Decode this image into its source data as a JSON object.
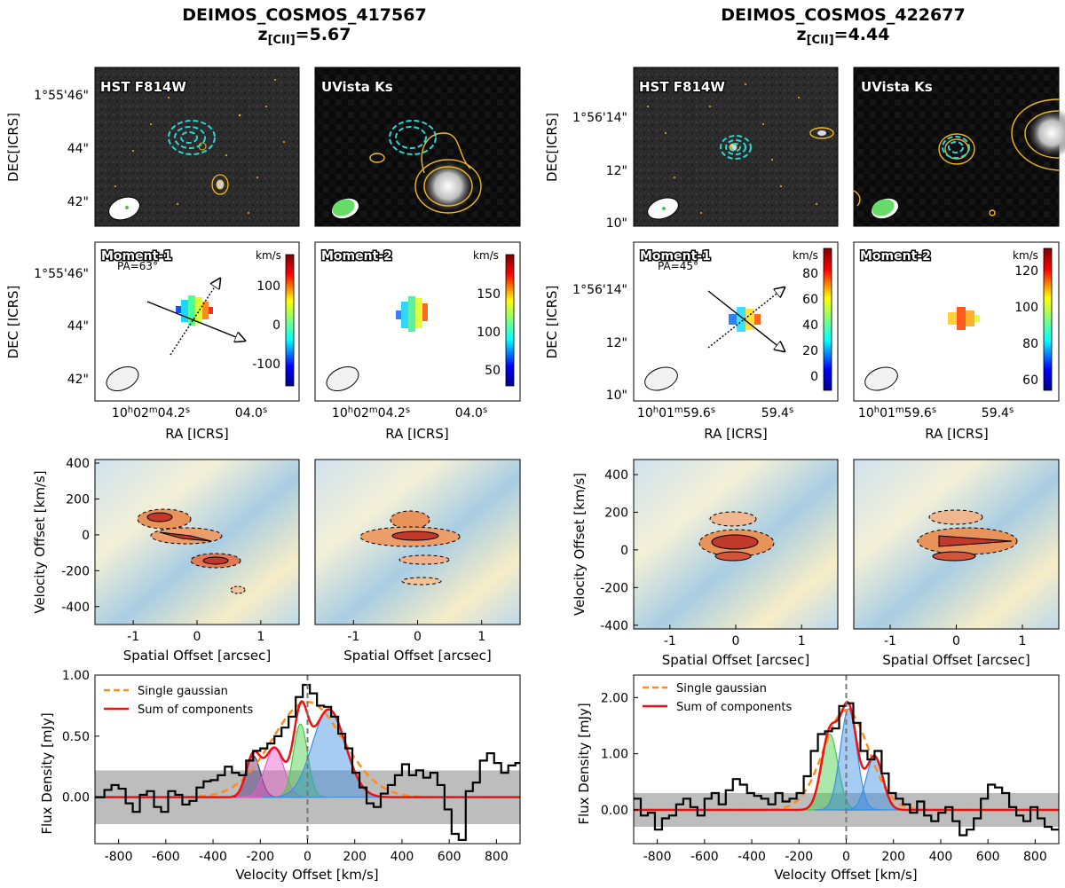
{
  "colors": {
    "spectrum": "#000000",
    "sum": "#ee1111",
    "single": "#ff8c1a",
    "contour_cyan": "#2cd6d6",
    "contour_gold": "#f2b91a",
    "noise_band": "#bdbdbd",
    "comp_purple": "#4b2a7a",
    "comp_magenta": "#e65cc8",
    "comp_green": "#44cc44",
    "comp_blue": "#3a8fe6"
  },
  "chart_data": [
    {
      "id": "obj1",
      "type": "multi-panel",
      "title_line1": "DEIMOS_COSMOS_417567",
      "title_z_prefix": "z",
      "title_z_sub": "[CII]",
      "title_z_value": "=5.67",
      "images": {
        "labels": [
          "HST F814W",
          "UVista Ks"
        ],
        "ylabel": "DEC[ICRS]",
        "yticks": [
          "1°55'46\"",
          "44\"",
          "42\""
        ]
      },
      "moments": {
        "labels": [
          "Moment-1",
          "Moment-2"
        ],
        "pa": "PA=63°",
        "unit": "km/s",
        "mom1_ticks": [
          100,
          0,
          -100
        ],
        "mom2_ticks": [
          150,
          100,
          50
        ],
        "ylabel": "DEC [ICRS]",
        "yticks": [
          "1°55'46\"",
          "44\"",
          "42\""
        ],
        "xlabel": "RA [ICRS]",
        "xtick_main": "10h02m04.2s",
        "xtick_main_parts": [
          "10",
          "h",
          "02",
          "m",
          "04.2",
          "s"
        ],
        "xtick_second": "04.0s",
        "xtick_second_parts": [
          "04.0",
          "s"
        ]
      },
      "pv": {
        "ylabel": "Velocity Offset [km/s]",
        "xlabel": "Spatial Offset [arcsec]",
        "xlim": [
          -1.6,
          1.6
        ],
        "ylim": [
          -500,
          420
        ],
        "xticks": [
          -1,
          0,
          1
        ],
        "yticks": [
          400,
          200,
          0,
          -200,
          -400
        ]
      },
      "spectrum": {
        "xlabel": "Velocity Offset [km/s]",
        "ylabel": "Flux Density [mJy]",
        "xlim": [
          -900,
          900
        ],
        "ylim": [
          -0.38,
          1.0
        ],
        "xticks": [
          -800,
          -600,
          -400,
          -200,
          0,
          200,
          400,
          600,
          800
        ],
        "yticks": [
          1.0,
          0.5,
          0.0
        ],
        "ytick_labels": [
          "1.00",
          "0.50",
          "0.00"
        ],
        "noise_band": [
          -0.22,
          0.22
        ],
        "legend": [
          "Single gaussian",
          "Sum of components"
        ],
        "single_gaussian": {
          "amp": 0.78,
          "center": 0,
          "sigma": 150
        },
        "components": [
          {
            "amp": 0.34,
            "center": -230,
            "sigma": 30
          },
          {
            "amp": 0.4,
            "center": -140,
            "sigma": 40
          },
          {
            "amp": 0.6,
            "center": -30,
            "sigma": 30
          },
          {
            "amp": 0.72,
            "center": 90,
            "sigma": 70
          }
        ],
        "x": [
          -900,
          -860,
          -830,
          -800,
          -770,
          -740,
          -710,
          -680,
          -650,
          -620,
          -590,
          -560,
          -530,
          -500,
          -470,
          -440,
          -410,
          -380,
          -350,
          -320,
          -290,
          -260,
          -230,
          -200,
          -170,
          -140,
          -110,
          -80,
          -50,
          -20,
          10,
          40,
          70,
          100,
          130,
          160,
          190,
          220,
          250,
          280,
          310,
          340,
          370,
          400,
          430,
          460,
          490,
          520,
          550,
          580,
          610,
          640,
          670,
          700,
          730,
          760,
          790,
          820,
          850,
          880
        ],
        "y": [
          0.0,
          0.06,
          0.1,
          0.07,
          -0.05,
          -0.12,
          0.02,
          0.05,
          -0.08,
          -0.12,
          0.05,
          0.02,
          -0.06,
          -0.03,
          0.08,
          0.13,
          0.14,
          0.18,
          0.25,
          0.2,
          0.18,
          0.3,
          0.38,
          0.4,
          0.44,
          0.5,
          0.57,
          0.66,
          0.82,
          0.92,
          0.85,
          0.75,
          0.74,
          0.66,
          0.52,
          0.4,
          0.2,
          0.08,
          -0.05,
          -0.08,
          0.03,
          0.1,
          0.18,
          0.27,
          0.18,
          0.22,
          0.16,
          0.2,
          0.1,
          -0.1,
          -0.3,
          -0.35,
          0.05,
          0.12,
          0.3,
          0.36,
          0.28,
          0.2,
          0.26,
          0.28
        ]
      }
    },
    {
      "id": "obj2",
      "type": "multi-panel",
      "title_line1": "DEIMOS_COSMOS_422677",
      "title_z_prefix": "z",
      "title_z_sub": "[CII]",
      "title_z_value": "=4.44",
      "images": {
        "labels": [
          "HST F814W",
          "UVista Ks"
        ],
        "ylabel": "DEC[ICRS]",
        "yticks": [
          "1°56'14\"",
          "12\"",
          "10\""
        ]
      },
      "moments": {
        "labels": [
          "Moment-1",
          "Moment-2"
        ],
        "pa": "PA=45°",
        "unit": "km/s",
        "mom1_ticks": [
          80,
          60,
          40,
          20,
          0
        ],
        "mom2_ticks": [
          120,
          100,
          80,
          60
        ],
        "ylabel": "DEC [ICRS]",
        "yticks": [
          "1°56'14\"",
          "12\"",
          "10\""
        ],
        "xlabel": "RA [ICRS]",
        "xtick_main": "10h01m59.6s",
        "xtick_main_parts": [
          "10",
          "h",
          "01",
          "m",
          "59.6",
          "s"
        ],
        "xtick_second": "59.4s",
        "xtick_second_parts": [
          "59.4",
          "s"
        ]
      },
      "pv": {
        "ylabel": "Velocity Offset [km/s]",
        "xlabel": "Spatial Offset [arcsec]",
        "xlim": [
          -1.55,
          1.55
        ],
        "ylim": [
          -420,
          480
        ],
        "xticks": [
          -1,
          0,
          1
        ],
        "yticks": [
          400,
          200,
          0,
          -200,
          -400
        ]
      },
      "spectrum": {
        "xlabel": "Velocity Offset [km/s]",
        "ylabel": "Flux Density [mJy]",
        "xlim": [
          -900,
          900
        ],
        "ylim": [
          -0.6,
          2.4
        ],
        "xticks": [
          -800,
          -600,
          -400,
          -200,
          0,
          200,
          400,
          600,
          800
        ],
        "yticks": [
          2.0,
          1.0,
          0.0
        ],
        "ytick_labels": [
          "2.00",
          "1.00",
          "0.00"
        ],
        "noise_band": [
          -0.3,
          0.3
        ],
        "legend": [
          "Single gaussian",
          "Sum of components"
        ],
        "single_gaussian": {
          "amp": 1.78,
          "center": 0,
          "sigma": 95
        },
        "components": [
          {
            "amp": 1.35,
            "center": -70,
            "sigma": 35
          },
          {
            "amp": 1.8,
            "center": 10,
            "sigma": 35
          },
          {
            "amp": 0.95,
            "center": 120,
            "sigma": 35
          }
        ],
        "x": [
          -900,
          -870,
          -840,
          -810,
          -780,
          -750,
          -720,
          -690,
          -660,
          -630,
          -600,
          -570,
          -540,
          -510,
          -480,
          -450,
          -420,
          -390,
          -360,
          -330,
          -300,
          -270,
          -240,
          -210,
          -180,
          -150,
          -120,
          -90,
          -60,
          -30,
          0,
          30,
          60,
          90,
          120,
          150,
          180,
          210,
          240,
          270,
          300,
          330,
          360,
          390,
          420,
          450,
          480,
          510,
          540,
          570,
          600,
          630,
          660,
          690,
          720,
          750,
          780,
          810,
          840,
          870
        ],
        "y": [
          0.2,
          -0.1,
          -0.05,
          -0.35,
          -0.15,
          -0.1,
          0.1,
          0.2,
          0.05,
          -0.1,
          0.2,
          0.3,
          0.1,
          0.35,
          0.55,
          0.45,
          0.3,
          0.25,
          0.2,
          0.1,
          0.3,
          0.15,
          0.2,
          0.3,
          0.6,
          1.05,
          1.35,
          1.4,
          1.45,
          1.85,
          1.9,
          1.55,
          1.05,
          0.9,
          1.05,
          0.65,
          0.3,
          0.2,
          0.1,
          -0.05,
          0.15,
          -0.1,
          -0.2,
          -0.05,
          0.05,
          -0.2,
          -0.45,
          -0.35,
          -0.15,
          0.2,
          0.45,
          0.4,
          0.3,
          0.05,
          -0.1,
          -0.2,
          0.05,
          -0.15,
          -0.3,
          -0.35
        ]
      }
    }
  ]
}
